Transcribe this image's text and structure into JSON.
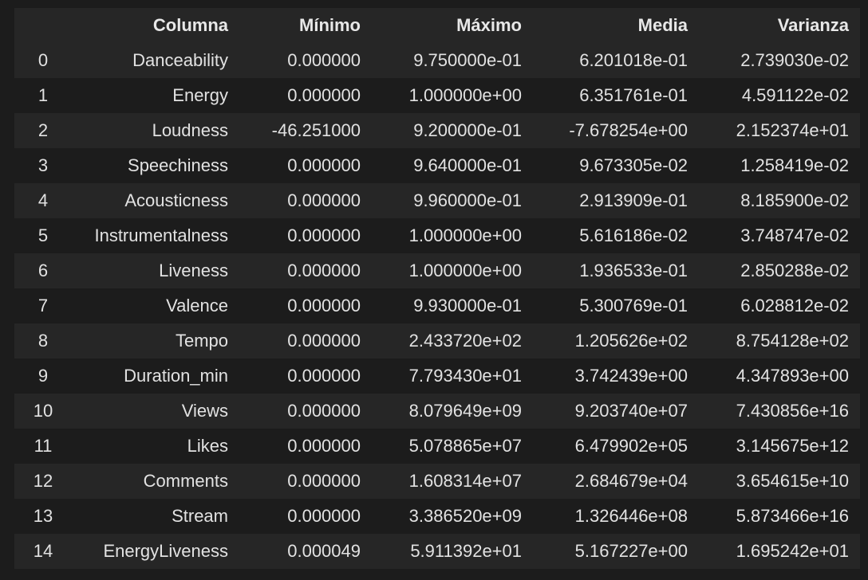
{
  "table": {
    "headers": [
      "",
      "Columna",
      "Mínimo",
      "Máximo",
      "Media",
      "Varianza"
    ],
    "rows": [
      [
        "0",
        "Danceability",
        "0.000000",
        "9.750000e-01",
        "6.201018e-01",
        "2.739030e-02"
      ],
      [
        "1",
        "Energy",
        "0.000000",
        "1.000000e+00",
        "6.351761e-01",
        "4.591122e-02"
      ],
      [
        "2",
        "Loudness",
        "-46.251000",
        "9.200000e-01",
        "-7.678254e+00",
        "2.152374e+01"
      ],
      [
        "3",
        "Speechiness",
        "0.000000",
        "9.640000e-01",
        "9.673305e-02",
        "1.258419e-02"
      ],
      [
        "4",
        "Acousticness",
        "0.000000",
        "9.960000e-01",
        "2.913909e-01",
        "8.185900e-02"
      ],
      [
        "5",
        "Instrumentalness",
        "0.000000",
        "1.000000e+00",
        "5.616186e-02",
        "3.748747e-02"
      ],
      [
        "6",
        "Liveness",
        "0.000000",
        "1.000000e+00",
        "1.936533e-01",
        "2.850288e-02"
      ],
      [
        "7",
        "Valence",
        "0.000000",
        "9.930000e-01",
        "5.300769e-01",
        "6.028812e-02"
      ],
      [
        "8",
        "Tempo",
        "0.000000",
        "2.433720e+02",
        "1.205626e+02",
        "8.754128e+02"
      ],
      [
        "9",
        "Duration_min",
        "0.000000",
        "7.793430e+01",
        "3.742439e+00",
        "4.347893e+00"
      ],
      [
        "10",
        "Views",
        "0.000000",
        "8.079649e+09",
        "9.203740e+07",
        "7.430856e+16"
      ],
      [
        "11",
        "Likes",
        "0.000000",
        "5.078865e+07",
        "6.479902e+05",
        "3.145675e+12"
      ],
      [
        "12",
        "Comments",
        "0.000000",
        "1.608314e+07",
        "2.684679e+04",
        "3.654615e+10"
      ],
      [
        "13",
        "Stream",
        "0.000000",
        "3.386520e+09",
        "1.326446e+08",
        "5.873466e+16"
      ],
      [
        "14",
        "EnergyLiveness",
        "0.000049",
        "5.911392e+01",
        "5.167227e+00",
        "1.695242e+01"
      ]
    ]
  }
}
